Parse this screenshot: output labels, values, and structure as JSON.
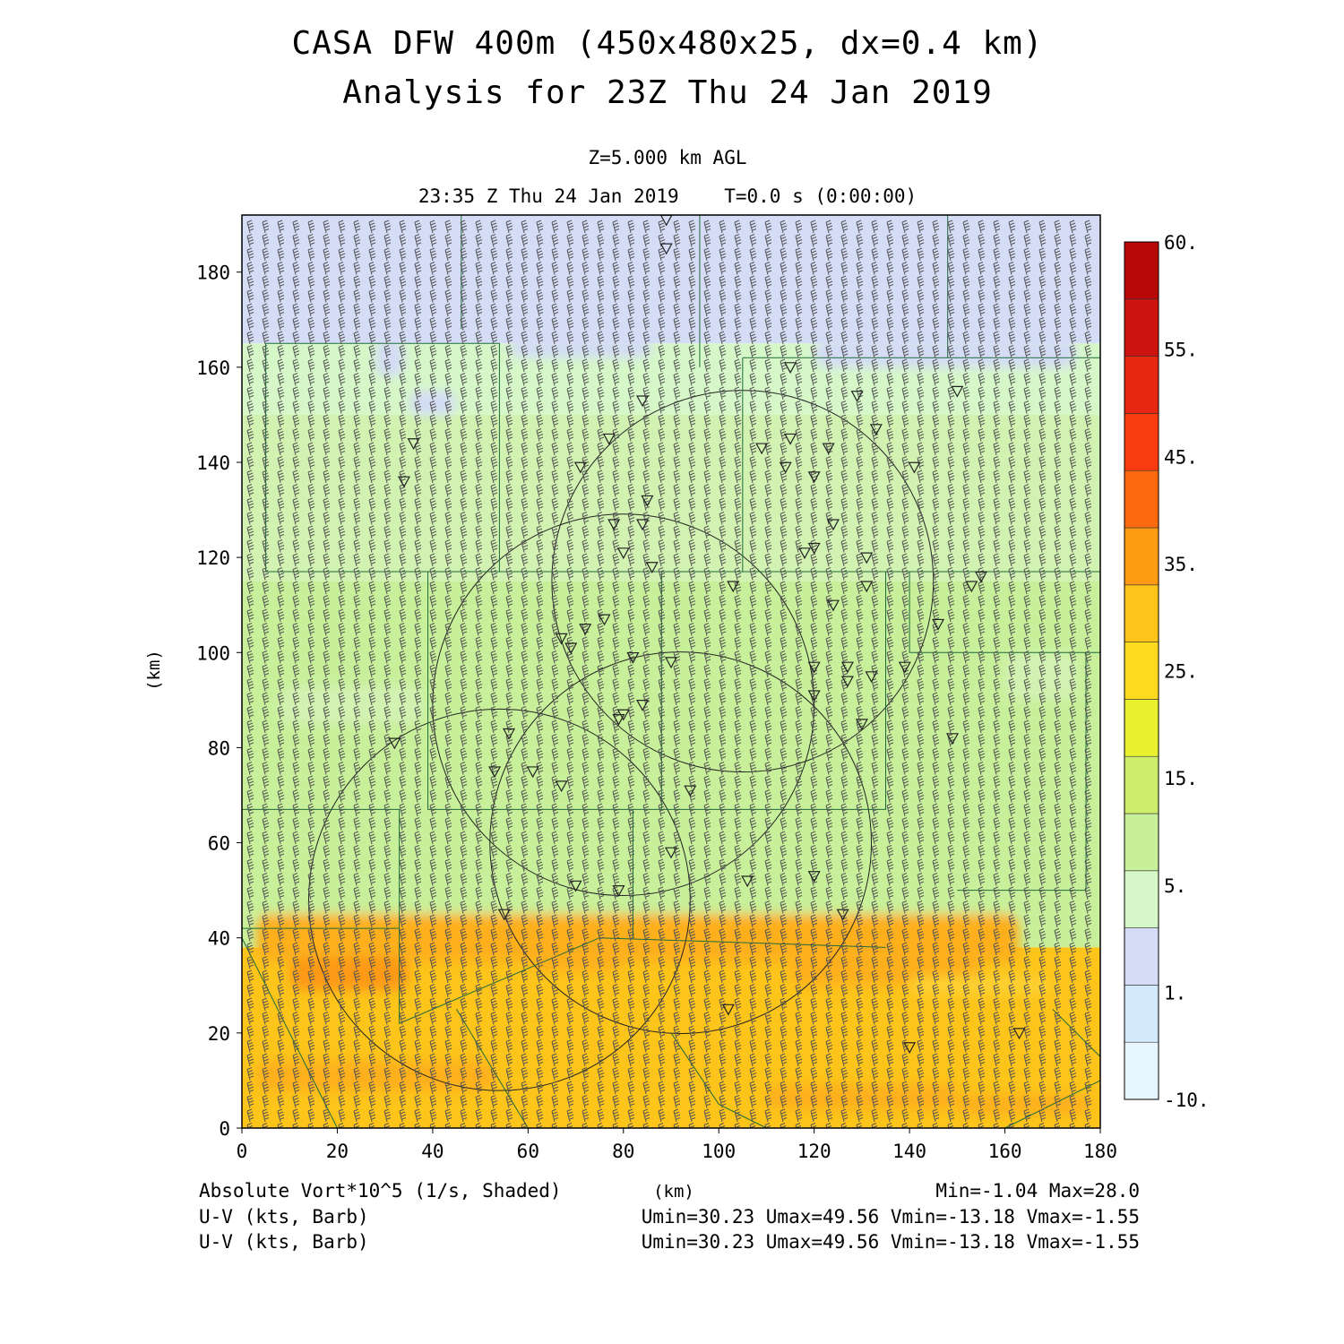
{
  "chart_data": {
    "type": "heatmap",
    "title": "CASA DFW 400m (450x480x25, dx=0.4 km)",
    "subtitle": "Analysis for 23Z Thu 24 Jan 2019",
    "level_label": "Z=5.000 km AGL",
    "time_label": "23:35 Z Thu 24 Jan 2019    T=0.0 s (0:00:00)",
    "xlabel": "(km)",
    "ylabel": "(km)",
    "xlim": [
      0,
      180
    ],
    "ylim": [
      0,
      192
    ],
    "x_ticks": [
      "0",
      "20",
      "40",
      "60",
      "80",
      "100",
      "120",
      "140",
      "160",
      "180"
    ],
    "y_ticks": [
      "0",
      "20",
      "40",
      "60",
      "80",
      "100",
      "120",
      "140",
      "160",
      "180"
    ],
    "field_label": "Absolute Vort*10^5 (1/s, Shaded)",
    "field_unit_label": "(km)",
    "min_max_label": "Min=-1.04 Max=28.0",
    "barb_label_1": "U-V (kts, Barb)",
    "barb_stats_1": "Umin=30.23 Umax=49.56 Vmin=-13.18 Vmax=-1.55",
    "barb_label_2": "U-V (kts, Barb)",
    "barb_stats_2": "Umin=30.23 Umax=49.56 Vmin=-13.18 Vmax=-1.55",
    "colorbar": {
      "labels": [
        "60.",
        "55.",
        "45.",
        "35.",
        "25.",
        "15.",
        "5.",
        "1.",
        "-10."
      ],
      "colors": [
        "#e8f6ff",
        "#d2e8fb",
        "#d4dcf6",
        "#d6f8c8",
        "#c8f09a",
        "#cdee6a",
        "#e9f12f",
        "#fdda20",
        "#fdc41a",
        "#fd9c12",
        "#fc6a10",
        "#f83c10",
        "#e62812",
        "#ce1410",
        "#b80808"
      ]
    },
    "field_zones": [
      {
        "y_from": 165,
        "y_to": 192,
        "value": 0.5,
        "color": "#d4dcf6"
      },
      {
        "y_from": 150,
        "y_to": 165,
        "value": 3,
        "color": "#d6f8c8"
      },
      {
        "y_from": 115,
        "y_to": 150,
        "value": 6,
        "color": "#d2f2b2"
      },
      {
        "y_from": 38,
        "y_to": 115,
        "value": 8,
        "color": "#c8f09a"
      },
      {
        "y_from": 0,
        "y_to": 38,
        "value": 22,
        "color": "#fdc41a"
      }
    ],
    "radar_rings_km": [
      {
        "x": 105,
        "y": 115,
        "r": 40
      },
      {
        "x": 80,
        "y": 89,
        "r": 40
      },
      {
        "x": 92,
        "y": 60,
        "r": 40
      },
      {
        "x": 54,
        "y": 48,
        "r": 40
      }
    ],
    "station_markers": [
      [
        89,
        191
      ],
      [
        89,
        185
      ],
      [
        115,
        160
      ],
      [
        150,
        155
      ],
      [
        84,
        153
      ],
      [
        129,
        154
      ],
      [
        133,
        147
      ],
      [
        36,
        144
      ],
      [
        77,
        145
      ],
      [
        109,
        143
      ],
      [
        115,
        145
      ],
      [
        123,
        143
      ],
      [
        71,
        139
      ],
      [
        141,
        139
      ],
      [
        114,
        139
      ],
      [
        34,
        136
      ],
      [
        120,
        137
      ],
      [
        85,
        132
      ],
      [
        78,
        127
      ],
      [
        84,
        127
      ],
      [
        124,
        127
      ],
      [
        80,
        121
      ],
      [
        118,
        121
      ],
      [
        120,
        122
      ],
      [
        131,
        120
      ],
      [
        86,
        118
      ],
      [
        103,
        114
      ],
      [
        131,
        114
      ],
      [
        153,
        114
      ],
      [
        155,
        116
      ],
      [
        124,
        110
      ],
      [
        76,
        107
      ],
      [
        72,
        105
      ],
      [
        146,
        106
      ],
      [
        67,
        103
      ],
      [
        69,
        101
      ],
      [
        82,
        99
      ],
      [
        90,
        98
      ],
      [
        120,
        97
      ],
      [
        127,
        97
      ],
      [
        139,
        97
      ],
      [
        127,
        94
      ],
      [
        132,
        95
      ],
      [
        120,
        91
      ],
      [
        84,
        89
      ],
      [
        80,
        87
      ],
      [
        79,
        86
      ],
      [
        32,
        81
      ],
      [
        56,
        83
      ],
      [
        149,
        82
      ],
      [
        130,
        85
      ],
      [
        61,
        75
      ],
      [
        53,
        75
      ],
      [
        67,
        72
      ],
      [
        94,
        71
      ],
      [
        90,
        58
      ],
      [
        70,
        51
      ],
      [
        79,
        50
      ],
      [
        106,
        52
      ],
      [
        120,
        53
      ],
      [
        55,
        45
      ],
      [
        126,
        45
      ],
      [
        102,
        25
      ],
      [
        140,
        17
      ],
      [
        163,
        20
      ]
    ]
  }
}
